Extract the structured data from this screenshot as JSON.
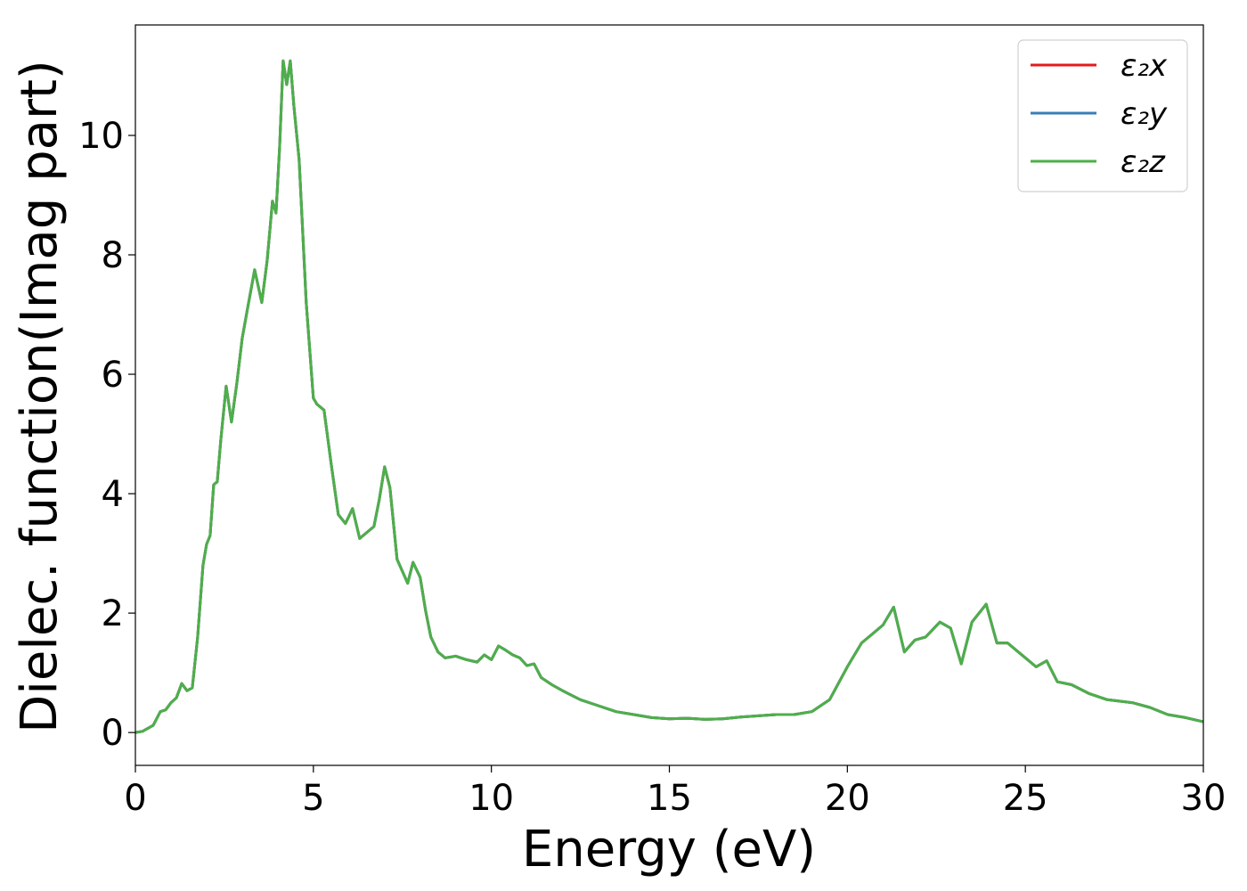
{
  "chart_data": {
    "type": "line",
    "title": "",
    "xlabel": "Energy (eV)",
    "ylabel": "Dielec. function(Imag part)",
    "xlim": [
      0,
      30
    ],
    "ylim": [
      -0.55,
      11.85
    ],
    "xticks": [
      0,
      5,
      10,
      15,
      20,
      25,
      30
    ],
    "yticks": [
      0,
      2,
      4,
      6,
      8,
      10
    ],
    "grid": false,
    "legend_position": "top-right",
    "series": [
      {
        "name": "ε₂x",
        "color": "#e41a1c",
        "x": [
          0,
          0.2,
          0.5,
          0.7,
          0.85,
          1.0,
          1.15,
          1.3,
          1.45,
          1.6,
          1.75,
          1.9,
          2.0,
          2.1,
          2.2,
          2.3,
          2.4,
          2.55,
          2.7,
          2.85,
          3.0,
          3.15,
          3.35,
          3.55,
          3.7,
          3.85,
          3.95,
          4.05,
          4.15,
          4.25,
          4.35,
          4.45,
          4.6,
          4.8,
          5.0,
          5.1,
          5.3,
          5.5,
          5.7,
          5.9,
          6.1,
          6.3,
          6.5,
          6.7,
          6.85,
          7.0,
          7.15,
          7.35,
          7.5,
          7.65,
          7.8,
          8.0,
          8.15,
          8.3,
          8.5,
          8.7,
          9.0,
          9.3,
          9.6,
          9.8,
          10.0,
          10.2,
          10.4,
          10.6,
          10.8,
          11.0,
          11.2,
          11.4,
          11.7,
          12.0,
          12.5,
          13.0,
          13.5,
          14.0,
          14.5,
          15.0,
          15.5,
          16.0,
          16.5,
          17.0,
          17.5,
          18.0,
          18.5,
          19.0,
          19.5,
          20.0,
          20.4,
          20.7,
          21.0,
          21.3,
          21.6,
          21.9,
          22.2,
          22.6,
          22.9,
          23.2,
          23.5,
          23.9,
          24.2,
          24.5,
          24.8,
          25.3,
          25.6,
          25.9,
          26.3,
          26.8,
          27.3,
          28.0,
          28.5,
          29.0,
          29.5,
          30.0
        ],
        "y": [
          0.0,
          0.02,
          0.12,
          0.35,
          0.38,
          0.5,
          0.58,
          0.82,
          0.7,
          0.75,
          1.6,
          2.8,
          3.15,
          3.3,
          4.15,
          4.2,
          4.9,
          5.8,
          5.2,
          5.85,
          6.6,
          7.1,
          7.75,
          7.2,
          7.9,
          8.9,
          8.7,
          9.8,
          11.25,
          10.85,
          11.25,
          10.5,
          9.6,
          7.2,
          5.6,
          5.5,
          5.4,
          4.5,
          3.65,
          3.5,
          3.75,
          3.25,
          3.35,
          3.45,
          3.9,
          4.45,
          4.1,
          2.9,
          2.7,
          2.5,
          2.85,
          2.6,
          2.05,
          1.6,
          1.35,
          1.25,
          1.28,
          1.22,
          1.18,
          1.3,
          1.22,
          1.45,
          1.38,
          1.3,
          1.25,
          1.12,
          1.15,
          0.92,
          0.8,
          0.7,
          0.55,
          0.45,
          0.35,
          0.3,
          0.25,
          0.23,
          0.24,
          0.22,
          0.23,
          0.26,
          0.28,
          0.3,
          0.3,
          0.35,
          0.55,
          1.1,
          1.5,
          1.65,
          1.8,
          2.1,
          1.35,
          1.55,
          1.6,
          1.85,
          1.75,
          1.15,
          1.85,
          2.15,
          1.5,
          1.5,
          1.35,
          1.1,
          1.2,
          0.85,
          0.8,
          0.65,
          0.55,
          0.5,
          0.42,
          0.3,
          0.25,
          0.18
        ]
      },
      {
        "name": "ε₂y",
        "color": "#377eb8",
        "x": [
          0,
          0.2,
          0.5,
          0.7,
          0.85,
          1.0,
          1.15,
          1.3,
          1.45,
          1.6,
          1.75,
          1.9,
          2.0,
          2.1,
          2.2,
          2.3,
          2.4,
          2.55,
          2.7,
          2.85,
          3.0,
          3.15,
          3.35,
          3.55,
          3.7,
          3.85,
          3.95,
          4.05,
          4.15,
          4.25,
          4.35,
          4.45,
          4.6,
          4.8,
          5.0,
          5.1,
          5.3,
          5.5,
          5.7,
          5.9,
          6.1,
          6.3,
          6.5,
          6.7,
          6.85,
          7.0,
          7.15,
          7.35,
          7.5,
          7.65,
          7.8,
          8.0,
          8.15,
          8.3,
          8.5,
          8.7,
          9.0,
          9.3,
          9.6,
          9.8,
          10.0,
          10.2,
          10.4,
          10.6,
          10.8,
          11.0,
          11.2,
          11.4,
          11.7,
          12.0,
          12.5,
          13.0,
          13.5,
          14.0,
          14.5,
          15.0,
          15.5,
          16.0,
          16.5,
          17.0,
          17.5,
          18.0,
          18.5,
          19.0,
          19.5,
          20.0,
          20.4,
          20.7,
          21.0,
          21.3,
          21.6,
          21.9,
          22.2,
          22.6,
          22.9,
          23.2,
          23.5,
          23.9,
          24.2,
          24.5,
          24.8,
          25.3,
          25.6,
          25.9,
          26.3,
          26.8,
          27.3,
          28.0,
          28.5,
          29.0,
          29.5,
          30.0
        ],
        "y": [
          0.0,
          0.02,
          0.12,
          0.35,
          0.38,
          0.5,
          0.58,
          0.82,
          0.7,
          0.75,
          1.6,
          2.8,
          3.15,
          3.3,
          4.15,
          4.2,
          4.9,
          5.8,
          5.2,
          5.85,
          6.6,
          7.1,
          7.75,
          7.2,
          7.9,
          8.9,
          8.7,
          9.8,
          11.25,
          10.85,
          11.25,
          10.5,
          9.6,
          7.2,
          5.6,
          5.5,
          5.4,
          4.5,
          3.65,
          3.5,
          3.75,
          3.25,
          3.35,
          3.45,
          3.9,
          4.45,
          4.1,
          2.9,
          2.7,
          2.5,
          2.85,
          2.6,
          2.05,
          1.6,
          1.35,
          1.25,
          1.28,
          1.22,
          1.18,
          1.3,
          1.22,
          1.45,
          1.38,
          1.3,
          1.25,
          1.12,
          1.15,
          0.92,
          0.8,
          0.7,
          0.55,
          0.45,
          0.35,
          0.3,
          0.25,
          0.23,
          0.24,
          0.22,
          0.23,
          0.26,
          0.28,
          0.3,
          0.3,
          0.35,
          0.55,
          1.1,
          1.5,
          1.65,
          1.8,
          2.1,
          1.35,
          1.55,
          1.6,
          1.85,
          1.75,
          1.15,
          1.85,
          2.15,
          1.5,
          1.5,
          1.35,
          1.1,
          1.2,
          0.85,
          0.8,
          0.65,
          0.55,
          0.5,
          0.42,
          0.3,
          0.25,
          0.18
        ]
      },
      {
        "name": "ε₂z",
        "color": "#4daf4a",
        "x": [
          0,
          0.2,
          0.5,
          0.7,
          0.85,
          1.0,
          1.15,
          1.3,
          1.45,
          1.6,
          1.75,
          1.9,
          2.0,
          2.1,
          2.2,
          2.3,
          2.4,
          2.55,
          2.7,
          2.85,
          3.0,
          3.15,
          3.35,
          3.55,
          3.7,
          3.85,
          3.95,
          4.05,
          4.15,
          4.25,
          4.35,
          4.45,
          4.6,
          4.8,
          5.0,
          5.1,
          5.3,
          5.5,
          5.7,
          5.9,
          6.1,
          6.3,
          6.5,
          6.7,
          6.85,
          7.0,
          7.15,
          7.35,
          7.5,
          7.65,
          7.8,
          8.0,
          8.15,
          8.3,
          8.5,
          8.7,
          9.0,
          9.3,
          9.6,
          9.8,
          10.0,
          10.2,
          10.4,
          10.6,
          10.8,
          11.0,
          11.2,
          11.4,
          11.7,
          12.0,
          12.5,
          13.0,
          13.5,
          14.0,
          14.5,
          15.0,
          15.5,
          16.0,
          16.5,
          17.0,
          17.5,
          18.0,
          18.5,
          19.0,
          19.5,
          20.0,
          20.4,
          20.7,
          21.0,
          21.3,
          21.6,
          21.9,
          22.2,
          22.6,
          22.9,
          23.2,
          23.5,
          23.9,
          24.2,
          24.5,
          24.8,
          25.3,
          25.6,
          25.9,
          26.3,
          26.8,
          27.3,
          28.0,
          28.5,
          29.0,
          29.5,
          30.0
        ],
        "y": [
          0.0,
          0.02,
          0.12,
          0.35,
          0.38,
          0.5,
          0.58,
          0.82,
          0.7,
          0.75,
          1.6,
          2.8,
          3.15,
          3.3,
          4.15,
          4.2,
          4.9,
          5.8,
          5.2,
          5.85,
          6.6,
          7.1,
          7.75,
          7.2,
          7.9,
          8.9,
          8.7,
          9.8,
          11.25,
          10.85,
          11.25,
          10.5,
          9.6,
          7.2,
          5.6,
          5.5,
          5.4,
          4.5,
          3.65,
          3.5,
          3.75,
          3.25,
          3.35,
          3.45,
          3.9,
          4.45,
          4.1,
          2.9,
          2.7,
          2.5,
          2.85,
          2.6,
          2.05,
          1.6,
          1.35,
          1.25,
          1.28,
          1.22,
          1.18,
          1.3,
          1.22,
          1.45,
          1.38,
          1.3,
          1.25,
          1.12,
          1.15,
          0.92,
          0.8,
          0.7,
          0.55,
          0.45,
          0.35,
          0.3,
          0.25,
          0.23,
          0.24,
          0.22,
          0.23,
          0.26,
          0.28,
          0.3,
          0.3,
          0.35,
          0.55,
          1.1,
          1.5,
          1.65,
          1.8,
          2.1,
          1.35,
          1.55,
          1.6,
          1.85,
          1.75,
          1.15,
          1.85,
          2.15,
          1.5,
          1.5,
          1.35,
          1.1,
          1.2,
          0.85,
          0.8,
          0.65,
          0.55,
          0.5,
          0.42,
          0.3,
          0.25,
          0.18
        ]
      }
    ]
  }
}
